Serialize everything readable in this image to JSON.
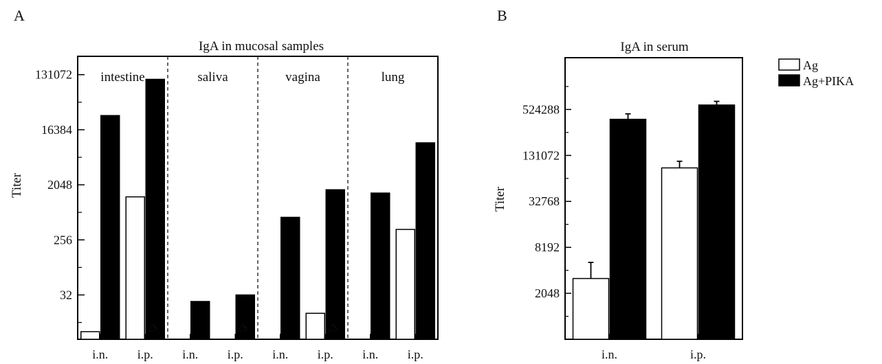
{
  "colors": {
    "ag": "#ffffff",
    "ag_pika": "#000000",
    "axis": "#000000"
  },
  "chart_data": [
    {
      "panel_label": "A",
      "type": "bar",
      "title": "IgA in mucosal samples",
      "ylabel": "Titer",
      "yscale": "log2",
      "ylim": [
        6,
        262144
      ],
      "yticks": [
        32,
        256,
        2048,
        16384,
        131072
      ],
      "yticks_text": [
        "32",
        "256",
        "2048",
        "16384",
        "131072"
      ],
      "groups": [
        "intestine",
        "saliva",
        "vagina",
        "lung"
      ],
      "categories": [
        "i.n.",
        "i.p.",
        "i.n.",
        "i.p.",
        "i.n.",
        "i.p.",
        "i.n.",
        "i.p."
      ],
      "series": [
        {
          "name": "Ag",
          "values": [
            8,
            1300,
            null,
            null,
            null,
            16,
            null,
            380
          ]
        },
        {
          "name": "Ag+PIKA",
          "values": [
            28000,
            110000,
            25,
            32,
            600,
            1700,
            1500,
            10000
          ]
        }
      ],
      "below_detection_label": "<3",
      "below_detection_marks": [
        1,
        3,
        5
      ]
    },
    {
      "panel_label": "B",
      "type": "bar",
      "title": "IgA in serum",
      "ylabel": "Titer",
      "yscale": "log2",
      "ylim": [
        512,
        2500000
      ],
      "yticks": [
        2048,
        8192,
        32768,
        131072,
        524288
      ],
      "yticks_text": [
        "2048",
        "8192",
        "32768",
        "131072",
        "524288"
      ],
      "categories": [
        "i.n.",
        "i.p."
      ],
      "series": [
        {
          "name": "Ag",
          "values": [
            3200,
            90000
          ],
          "errors": [
            2000,
            20000
          ]
        },
        {
          "name": "Ag+PIKA",
          "values": [
            390000,
            600000
          ],
          "errors": [
            70000,
            70000
          ]
        }
      ],
      "legend": {
        "position": "top-right",
        "entries": [
          "Ag",
          "Ag+PIKA"
        ]
      }
    }
  ]
}
